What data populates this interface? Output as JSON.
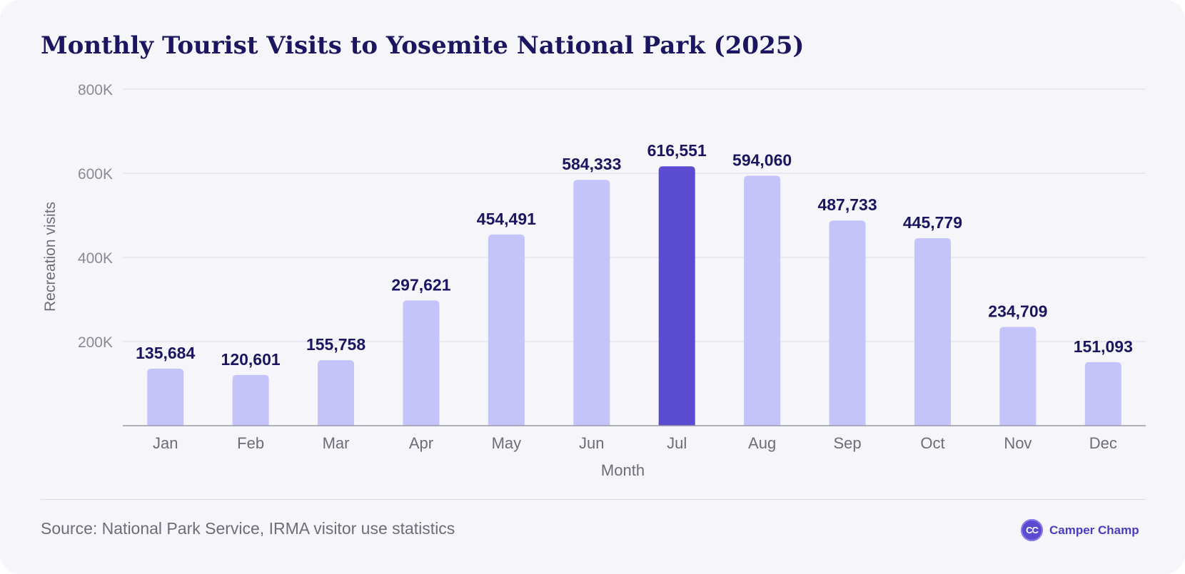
{
  "title": "Monthly Tourist Visits to Yosemite National Park (2025)",
  "source": "Source: National Park Service, IRMA visitor use statistics",
  "brand": {
    "logo_text": "CC",
    "name": "Camper Champ"
  },
  "colors": {
    "bar": "#c4c4fa",
    "bar_highlight": "#5b4bcf",
    "title": "#1c1660",
    "value_label": "#1c1660",
    "axis_text": "#6d6d78",
    "grid": "#e2e1ea"
  },
  "chart_data": {
    "type": "bar",
    "title": "Monthly Tourist Visits to Yosemite National Park (2025)",
    "xlabel": "Month",
    "ylabel": "Recreation visits",
    "categories": [
      "Jan",
      "Feb",
      "Mar",
      "Apr",
      "May",
      "Jun",
      "Jul",
      "Aug",
      "Sep",
      "Oct",
      "Nov",
      "Dec"
    ],
    "values": [
      135684,
      120601,
      155758,
      297621,
      454491,
      584333,
      616551,
      594060,
      487733,
      445779,
      234709,
      151093
    ],
    "value_labels": [
      "135,684",
      "120,601",
      "155,758",
      "297,621",
      "454,491",
      "584,333",
      "616,551",
      "594,060",
      "487,733",
      "445,779",
      "234,709",
      "151,093"
    ],
    "highlight": "Jul",
    "ylim": [
      0,
      800000
    ],
    "yticks": [
      200000,
      400000,
      600000,
      800000
    ],
    "ytick_labels": [
      "200K",
      "400K",
      "600K",
      "800K"
    ],
    "grid": true,
    "legend": "none"
  }
}
